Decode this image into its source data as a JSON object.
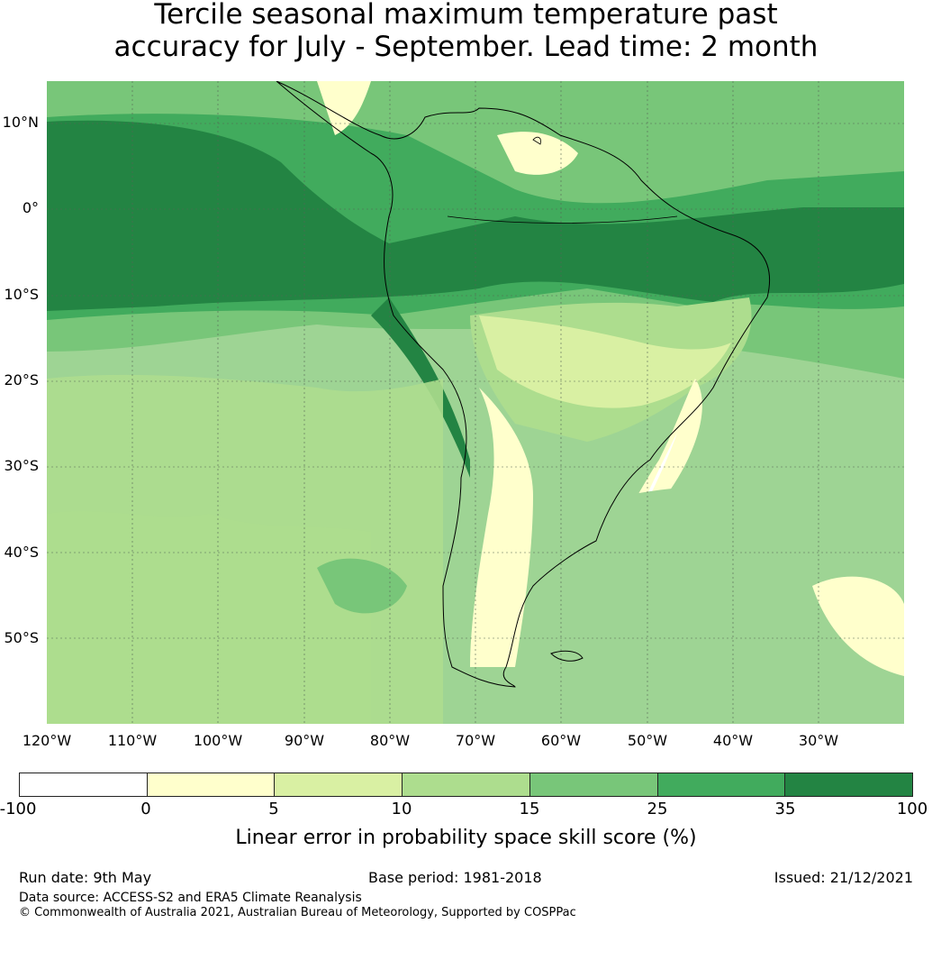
{
  "title_line1": "Tercile seasonal maximum temperature past",
  "title_line2": "accuracy for July - September. Lead time: 2 month",
  "lat_labels": [
    "10°N",
    "0°",
    "10°S",
    "20°S",
    "30°S",
    "40°S",
    "50°S"
  ],
  "lon_labels": [
    "120°W",
    "110°W",
    "100°W",
    "90°W",
    "80°W",
    "70°W",
    "60°W",
    "50°W",
    "40°W",
    "30°W"
  ],
  "colorbar": {
    "ticks": [
      "-100",
      "0",
      "5",
      "10",
      "15",
      "25",
      "35",
      "100"
    ],
    "colors": [
      "#ffffff",
      "#ffffcc",
      "#d9f0a3",
      "#addd8e",
      "#78c679",
      "#41ab5d",
      "#238443"
    ],
    "label": "Linear error in probability space skill score (%)"
  },
  "footer": {
    "run_date": "Run date: 9th May",
    "base_period": "Base period: 1981-2018",
    "issued": "Issued: 21/12/2021",
    "data_source": "Data source: ACCESS-S2 and ERA5 Climate Reanalysis",
    "copyright": "© Commonwealth of Australia 2021, Australian Bureau of Meteorology, Supported by COSPPac"
  }
}
